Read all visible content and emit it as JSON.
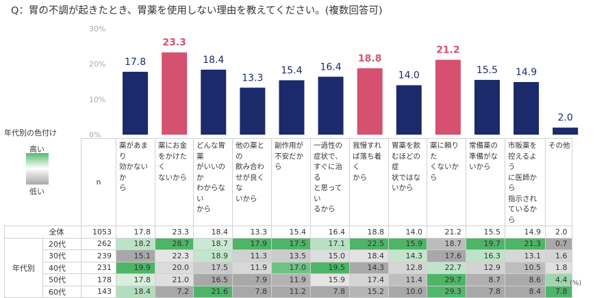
{
  "question": "Q：胃の不調が起きたとき、胃薬を使用しない理由を教えてください。(複数回答可)",
  "legend": {
    "title": "年代別の色付け",
    "high": "高い",
    "low": "低い"
  },
  "table": {
    "n_header": "n",
    "group_label": "年代別",
    "unit": "(%)",
    "columns": [
      "薬があまり効かないから",
      "薬にお金をかけたくないから",
      "どんな胃薬がいいのかわからないから",
      "他の薬との飲み合わせが良くないから",
      "副作用が不安だから",
      "一過性の症状で、すぐに治ると思っているから",
      "我慢すれば落ち着くから",
      "胃薬を飲むほどの症状ではないから",
      "薬に頼りたくないから",
      "常備薬の準備がないから",
      "市販薬を控えるように医師から指示されているから",
      "その他"
    ],
    "header_lines": [
      [
        "薬があまり",
        "効かないか",
        "ら"
      ],
      [
        "薬にお金",
        "をかけたく",
        "ないから"
      ],
      [
        "どんな胃薬",
        "がいいのか",
        "わからない",
        "から"
      ],
      [
        "他の薬との",
        "飲み合わ",
        "せが良くな",
        "いから"
      ],
      [
        "副作用が",
        "不安だから"
      ],
      [
        "一過性の",
        "症状で、",
        "すぐに治る",
        "と思ってい",
        "るから"
      ],
      [
        "我慢すれ",
        "ば落ち着く",
        "から"
      ],
      [
        "胃薬を飲",
        "むほどの症",
        "状ではな",
        "いから"
      ],
      [
        "薬に頼りた",
        "くないから"
      ],
      [
        "常備薬の",
        "準備がな",
        "いから"
      ],
      [
        "市販薬を",
        "控えるよう",
        "に医師から",
        "指示され",
        "ているから"
      ],
      [
        "その他"
      ]
    ],
    "rows": [
      {
        "label": "全体",
        "n": 1053,
        "values": [
          17.8,
          23.3,
          18.4,
          13.3,
          15.4,
          16.4,
          18.8,
          14.0,
          21.2,
          15.5,
          14.9,
          2.0
        ]
      },
      {
        "label": "20代",
        "n": 262,
        "values": [
          18.2,
          28.7,
          18.7,
          17.9,
          17.5,
          17.1,
          22.5,
          15.9,
          18.7,
          19.7,
          21.3,
          0.7
        ]
      },
      {
        "label": "30代",
        "n": 239,
        "values": [
          15.1,
          22.3,
          18.9,
          11.3,
          13.5,
          15.0,
          18.4,
          14.3,
          17.6,
          16.3,
          13.1,
          1.6
        ]
      },
      {
        "label": "40代",
        "n": 231,
        "values": [
          19.9,
          20.0,
          17.5,
          11.9,
          17.0,
          19.5,
          14.3,
          12.8,
          22.7,
          12.9,
          10.5,
          1.8
        ]
      },
      {
        "label": "50代",
        "n": 178,
        "values": [
          17.8,
          21.0,
          16.5,
          7.9,
          11.9,
          15.9,
          17.4,
          11.4,
          29.7,
          8.7,
          8.6,
          4.4
        ]
      },
      {
        "label": "60代",
        "n": 143,
        "values": [
          18.4,
          7.2,
          21.6,
          7.8,
          11.2,
          7.8,
          15.2,
          10.0,
          29.3,
          7.8,
          8.4,
          7.8
        ]
      }
    ]
  },
  "chart_data": {
    "type": "bar",
    "categories": [
      "薬があまり効かないから",
      "薬にお金をかけたくないから",
      "どんな胃薬がいいのかわからないから",
      "他の薬との飲み合わせが良くないから",
      "副作用が不安だから",
      "一過性の症状で、すぐに治ると思っているから",
      "我慢すれば落ち着くから",
      "胃薬を飲むほどの症状ではないから",
      "薬に頼りたくないから",
      "常備薬の準備がないから",
      "市販薬を控えるように医師から指示されているから",
      "その他"
    ],
    "values": [
      17.8,
      23.3,
      18.4,
      13.3,
      15.4,
      16.4,
      18.8,
      14.0,
      21.2,
      15.5,
      14.9,
      2.0
    ],
    "value_labels": [
      "17.8",
      "23.3",
      "18.4",
      "13.3",
      "15.4",
      "16.4",
      "18.8",
      "14.0",
      "21.2",
      "15.5",
      "14.9",
      "2.0"
    ],
    "highlight": [
      false,
      true,
      false,
      false,
      false,
      false,
      true,
      false,
      true,
      false,
      false,
      false
    ],
    "ylim": [
      0,
      30
    ],
    "yticks": [
      0,
      10,
      20,
      30
    ],
    "ytick_labels": [
      "0%",
      "10%",
      "20%",
      "30%"
    ],
    "grid": false,
    "colors": {
      "bar": "#1b2a6b",
      "highlight": "#d6516f",
      "label": "#1b2a6b",
      "highlight_label": "#d6516f",
      "tick": "#aaaaaa"
    }
  }
}
